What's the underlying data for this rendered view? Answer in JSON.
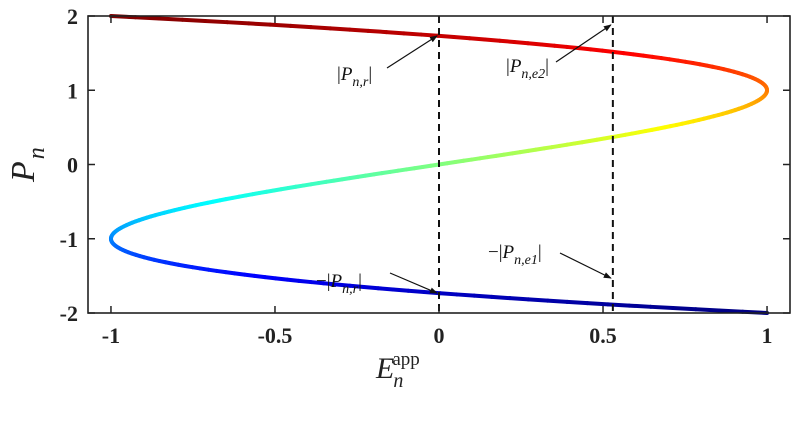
{
  "chart_data": {
    "type": "line",
    "xlabel": {
      "base": "E",
      "sub": "n",
      "sup": "app"
    },
    "ylabel": {
      "base": "P",
      "sub": "n"
    },
    "xlim": [
      -1.07,
      1.07
    ],
    "ylim": [
      -2,
      2
    ],
    "x_ticks": [
      -1,
      -0.5,
      0,
      0.5,
      1
    ],
    "x_tick_labels": [
      "-1",
      "-0.5",
      "0",
      "0.5",
      "1"
    ],
    "y_ticks": [
      -2,
      -1,
      0,
      1,
      2
    ],
    "y_tick_labels": [
      "-2",
      "-1",
      "0",
      "1",
      "2"
    ],
    "grid": false,
    "curve": {
      "relation": "E = (3P - P^3) / 2",
      "p_range": [
        -2,
        2
      ],
      "colormap": "jet"
    },
    "reference_lines": [
      {
        "x": 0,
        "style": "dashed"
      },
      {
        "x": 0.53,
        "style": "dashed"
      }
    ],
    "annotations": [
      {
        "prefix": "",
        "sub": "n,r",
        "target": [
          0,
          1.732
        ]
      },
      {
        "prefix": "",
        "sub": "n,e2",
        "target": [
          0.53,
          1.88
        ]
      },
      {
        "prefix": "−",
        "sub": "n,r",
        "target": [
          0,
          -1.732
        ]
      },
      {
        "prefix": "−",
        "sub": "n,e1",
        "target": [
          0.53,
          -1.53
        ]
      }
    ]
  }
}
